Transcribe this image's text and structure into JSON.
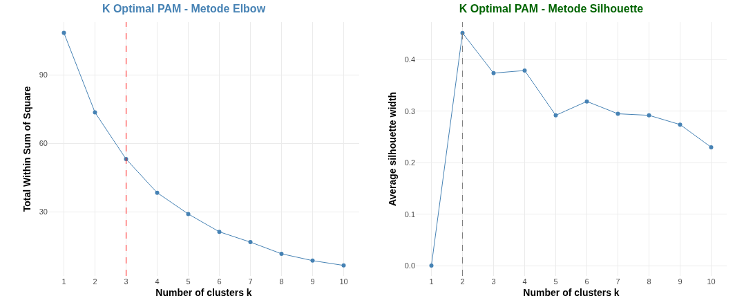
{
  "chart_data": [
    {
      "type": "line",
      "title": "K Optimal PAM - Metode Elbow",
      "xlabel": "Number of clusters k",
      "ylabel": "Total Within Sum of Square",
      "categories": [
        "1",
        "2",
        "3",
        "4",
        "5",
        "6",
        "7",
        "8",
        "9",
        "10"
      ],
      "series": [
        {
          "color": "#4682b4",
          "values": [
            108.3,
            73.5,
            53.1,
            38.4,
            29.1,
            21.3,
            16.8,
            11.7,
            8.7,
            6.6
          ]
        }
      ],
      "ylim": [
        2,
        113
      ],
      "yticks": [
        30,
        60,
        90
      ],
      "grid": true,
      "marker": "circle",
      "line_style": "solid",
      "ref_lines": [
        {
          "axis": "x",
          "value": "3",
          "color": "#ff0000",
          "line_style": "dashed"
        }
      ]
    },
    {
      "type": "line",
      "title": "K Optimal PAM - Metode Silhouette",
      "xlabel": "Number of clusters k",
      "ylabel": "Average silhouette width",
      "categories": [
        "1",
        "2",
        "3",
        "4",
        "5",
        "6",
        "7",
        "8",
        "9",
        "10"
      ],
      "series": [
        {
          "color": "#4682b4",
          "values": [
            0,
            0.452,
            0.374,
            0.379,
            0.292,
            0.319,
            0.295,
            0.292,
            0.274,
            0.23
          ]
        }
      ],
      "ylim": [
        -0.02,
        0.473
      ],
      "yticks": [
        {
          "value": 0,
          "label": "0.0"
        },
        0.1,
        0.2,
        0.3,
        0.4
      ],
      "grid": true,
      "marker": "circle",
      "line_style": "solid",
      "ref_lines": [
        {
          "axis": "x",
          "value": "2",
          "color": "#808080",
          "line_style": "dashed"
        }
      ]
    }
  ]
}
